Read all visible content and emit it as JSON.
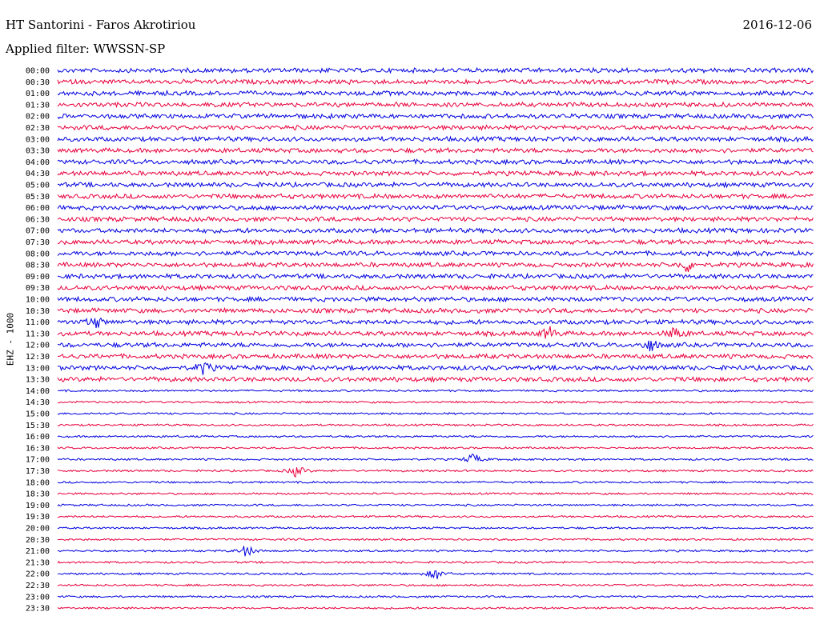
{
  "header": {
    "station": "HT Santorini - Faros Akrotiriou",
    "date": "2016-12-06",
    "filter": "Applied filter: WWSSN-SP"
  },
  "chart_data": {
    "type": "line",
    "title": "HT Santorini - Faros Akrotiriou",
    "ylabel": "EHZ - 1000",
    "grid": false,
    "legend": "none",
    "colors": [
      "#0000e0",
      "#e8003c"
    ],
    "row_labels": [
      "00:00",
      "00:30",
      "01:00",
      "01:30",
      "02:00",
      "02:30",
      "03:00",
      "03:30",
      "04:00",
      "04:30",
      "05:00",
      "05:30",
      "06:00",
      "06:30",
      "07:00",
      "07:30",
      "08:00",
      "08:30",
      "09:00",
      "09:30",
      "10:00",
      "10:30",
      "11:00",
      "11:30",
      "12:00",
      "12:30",
      "13:00",
      "13:30",
      "14:00",
      "14:30",
      "15:00",
      "15:30",
      "16:00",
      "16:30",
      "17:00",
      "17:30",
      "18:00",
      "18:30",
      "19:00",
      "19:30",
      "20:00",
      "20:30",
      "21:00",
      "21:30",
      "22:00",
      "22:30",
      "23:00",
      "23:30"
    ],
    "events": [
      {
        "row": "08:30",
        "minute": 25.0
      },
      {
        "row": "11:00",
        "minute": 1.5
      },
      {
        "row": "11:30",
        "minute": 19.5
      },
      {
        "row": "11:30",
        "minute": 24.5
      },
      {
        "row": "12:00",
        "minute": 23.5
      },
      {
        "row": "13:00",
        "minute": 5.8
      },
      {
        "row": "17:00",
        "minute": 16.5
      },
      {
        "row": "17:30",
        "minute": 9.5
      },
      {
        "row": "21:00",
        "minute": 7.5
      },
      {
        "row": "22:00",
        "minute": 15.0
      }
    ]
  }
}
